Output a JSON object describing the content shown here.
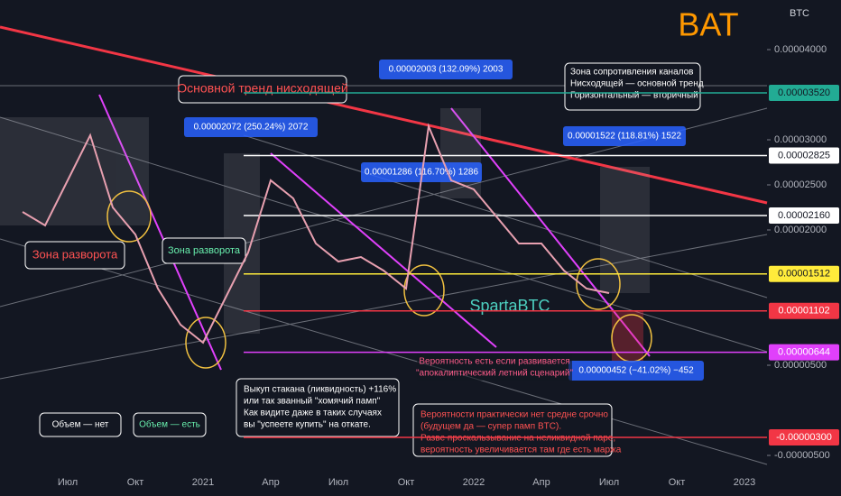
{
  "chart_data": {
    "type": "line",
    "title": "BAT",
    "watermark": "SpartaBTC",
    "y_axis_label": "BTC",
    "color": "#e8a0b0",
    "categories": [
      null,
      null,
      "Июл",
      null,
      null,
      "Окт",
      null,
      null,
      "2021",
      null,
      null,
      "Апр",
      null,
      null,
      "Июл",
      null,
      null,
      "Окт",
      null,
      null,
      "2022",
      null,
      null,
      "Апр",
      null,
      null,
      "Июл",
      null,
      null,
      "Окт",
      null,
      null,
      "2023"
    ],
    "values": [
      2.2e-05,
      2.05e-05,
      2.55e-05,
      3.05e-05,
      2.25e-05,
      1.95e-05,
      1.35e-05,
      9.5e-06,
      7.5e-06,
      1.25e-05,
      1.75e-05,
      2.55e-05,
      2.35e-05,
      1.85e-05,
      1.65e-05,
      1.7e-05,
      1.55e-05,
      1.35e-05,
      3.15e-05,
      2.55e-05,
      2.45e-05,
      2.15e-05,
      1.85e-05,
      1.85e-05,
      1.55e-05,
      1.35e-05,
      1.3e-05,
      null,
      null,
      null,
      null,
      null,
      null
    ],
    "ylim": [
      -8.5e-06,
      4.55e-05
    ],
    "yticks": [
      {
        "value": 4e-05,
        "label": "0.00004000"
      },
      {
        "value": 3e-05,
        "label": "0.00003000"
      },
      {
        "value": 2.5e-05,
        "label": "0.00002500"
      },
      {
        "value": 2e-05,
        "label": "0.00002000"
      },
      {
        "value": 5e-06,
        "label": "0.00000500"
      },
      {
        "value": -5e-06,
        "label": "-0.00000500"
      }
    ],
    "levels": [
      {
        "value": 3.52e-05,
        "label": "0.00003520",
        "color": "#22ab94"
      },
      {
        "value": 2.825e-05,
        "label": "0.00002825",
        "color": "#ffffff"
      },
      {
        "value": 2.16e-05,
        "label": "0.00002160",
        "color": "#ffffff"
      },
      {
        "value": 1.512e-05,
        "label": "0.00001512",
        "color": "#ffeb3b"
      },
      {
        "value": 1.102e-05,
        "label": "0.00001102",
        "color": "#f23645"
      },
      {
        "value": 6.44e-06,
        "label": "0.00000644",
        "color": "#e040fb"
      },
      {
        "value": -3e-06,
        "label": "-0.00000300",
        "color": "#f23645"
      }
    ],
    "annotations": {
      "main_trend": "Основной тренд нисходящей",
      "reversal_zone_1": "Зона разворота",
      "reversal_zone_2": "Зона разворота",
      "volume_none": "Объем — нет",
      "volume_present": "Объем — есть",
      "measure_1": "0.00002072 (250.24%) 2072",
      "measure_2": "0.00002003 (132.09%) 2003",
      "measure_3": "0.00001286 (116.70%) 1286",
      "measure_4": "0.00001522 (118.81%) 1522",
      "measure_5": "0.00000452 (−41.02%) −452",
      "resistance_note": [
        "Зона сопротивления каналов",
        "Нисходящей — основной тренд",
        "Горизонтальный — вторичный"
      ],
      "liquidity_note": [
        "Выкуп стакана (ликвидность) +116%",
        "или так званный \"хомячий памп\"",
        "Как видите даже в таких случаях",
        "вы \"успеете купить\" на откате."
      ],
      "probability_note": [
        "Вероятность есть если развивается",
        "\"апокалиптический летний сценарий\""
      ],
      "practically_note": [
        "Вероятности практически нет средне срочно",
        "(будущем да — супер памп BTC).",
        "Разве проскальзывание на неликвидной паре,",
        "вероятность увеличивается там где есть маржа"
      ]
    }
  }
}
